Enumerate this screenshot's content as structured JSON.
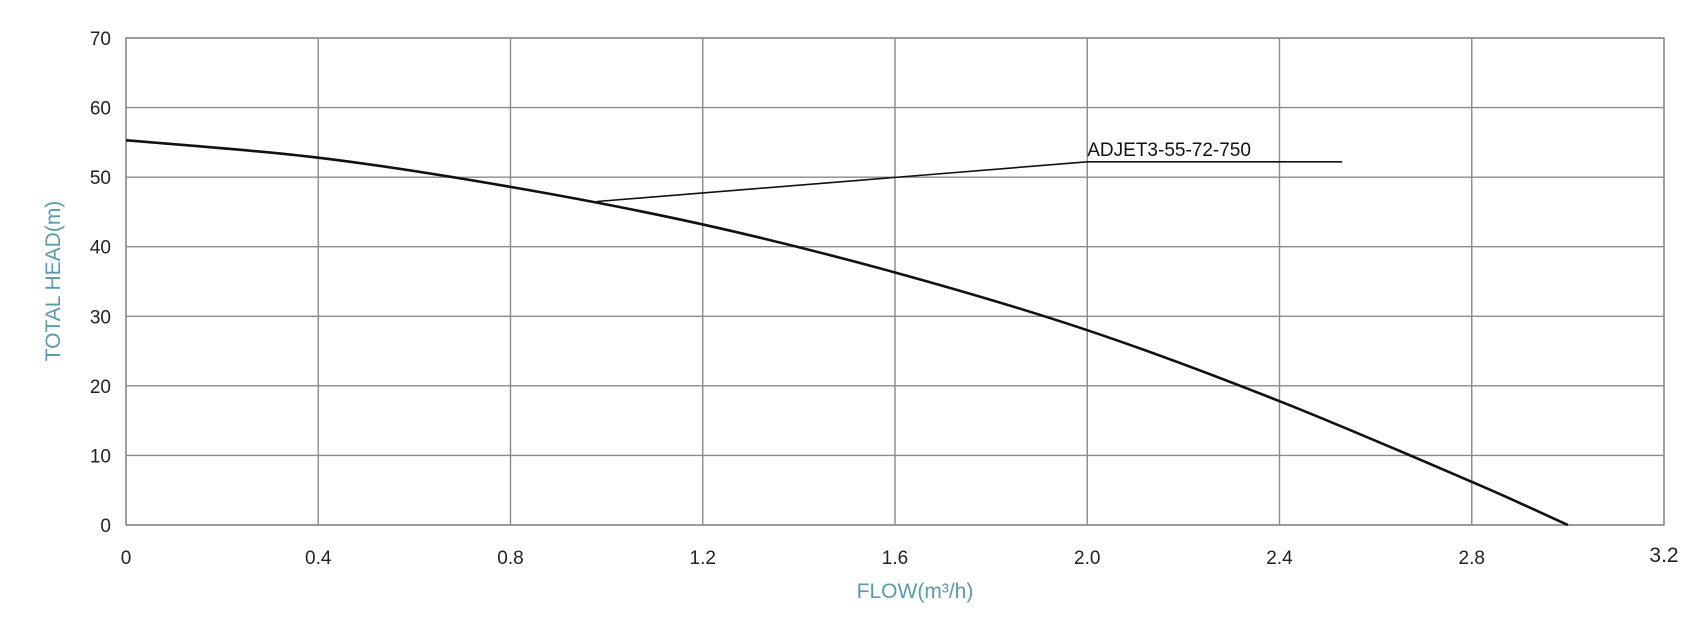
{
  "chart_data": {
    "type": "line",
    "xlabel": "FLOW(m³/h)",
    "ylabel": "TOTAL HEAD(m)",
    "xlim": [
      0,
      3.2
    ],
    "ylim": [
      0,
      70
    ],
    "x_ticks": [
      "0",
      "0.4",
      "0.8",
      "1.2",
      "1.6",
      "2.0",
      "2.4",
      "2.8",
      "3.2"
    ],
    "y_ticks": [
      "0",
      "10",
      "20",
      "30",
      "40",
      "50",
      "60",
      "70"
    ],
    "grid": true,
    "series": [
      {
        "name": "ADJET3-55-72-750",
        "x": [
          0,
          0.4,
          0.8,
          1.2,
          1.6,
          2.0,
          2.4,
          2.8,
          3.0
        ],
        "y": [
          55.3,
          52.8,
          48.6,
          43.2,
          36.3,
          28.0,
          17.8,
          6.2,
          0
        ]
      }
    ],
    "annotations": [
      {
        "text": "ADJET3-55-72-750",
        "x": 2.0,
        "y": 52.2,
        "points_to": {
          "x": 0.98,
          "y": 46.5
        },
        "line_end_x": 2.53
      }
    ]
  }
}
